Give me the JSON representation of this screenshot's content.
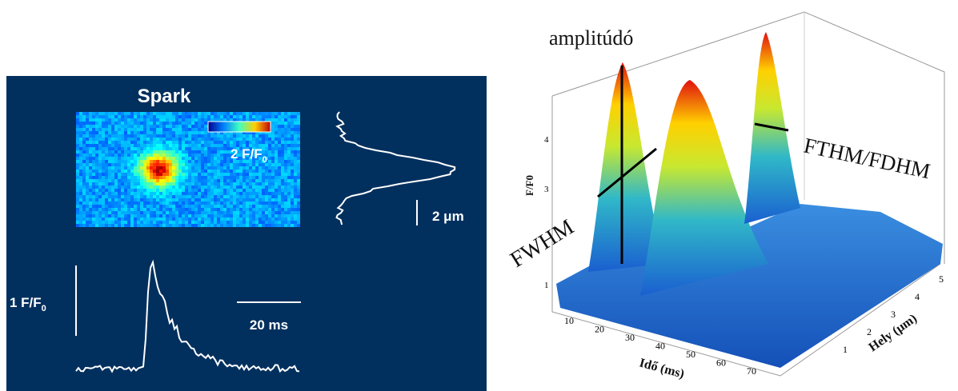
{
  "left_panel": {
    "title": "Spark",
    "colorbar_label": {
      "main": "2 F/F",
      "sub": "0"
    },
    "space_scale": "2 μm",
    "amp_scale": {
      "main": "1 F/F",
      "sub": "0"
    },
    "time_scale": "20 ms"
  },
  "right_panel": {
    "amplitude_label": "amplitúdó",
    "fwhm_label": "FWHM",
    "fthm_label": "FTHM/FDHM",
    "z_axis_label": "F/F0",
    "z_ticks": [
      "1",
      "3",
      "4"
    ],
    "x_axis_label": "Idő (ms)",
    "x_ticks": [
      "10",
      "20",
      "30",
      "40",
      "50",
      "60",
      "70"
    ],
    "y_axis_label": "Hely (μm)",
    "y_ticks": [
      "1",
      "2",
      "3",
      "4",
      "5"
    ]
  }
}
